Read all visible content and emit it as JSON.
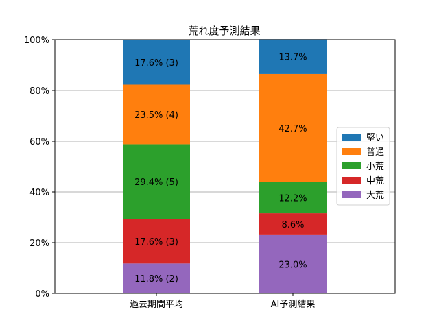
{
  "chart_data": {
    "type": "bar",
    "stacked": true,
    "title": "荒れ度予測結果",
    "xlabel": "",
    "ylabel": "",
    "categories": [
      "過去期間平均",
      "AI予測結果"
    ],
    "ylim": [
      0,
      100
    ],
    "yticks": [
      0,
      20,
      40,
      60,
      80,
      100
    ],
    "ytick_labels": [
      "0%",
      "20%",
      "40%",
      "60%",
      "80%",
      "100%"
    ],
    "grid": "horizontal",
    "legend_position": "right",
    "series": [
      {
        "name": "大荒",
        "color": "#9467bd",
        "values": [
          11.8,
          23.0
        ],
        "labels": [
          "11.8% (2)",
          "23.0%"
        ]
      },
      {
        "name": "中荒",
        "color": "#d62728",
        "values": [
          17.6,
          8.6
        ],
        "labels": [
          "17.6% (3)",
          "8.6%"
        ]
      },
      {
        "name": "小荒",
        "color": "#2ca02c",
        "values": [
          29.4,
          12.2
        ],
        "labels": [
          "29.4% (5)",
          "12.2%"
        ]
      },
      {
        "name": "普通",
        "color": "#ff7f0e",
        "values": [
          23.5,
          42.7
        ],
        "labels": [
          "23.5% (4)",
          "42.7%"
        ]
      },
      {
        "name": "堅い",
        "color": "#1f77b4",
        "values": [
          17.6,
          13.7
        ],
        "labels": [
          "17.6% (3)",
          "13.7%"
        ]
      }
    ],
    "legend_order": [
      "堅い",
      "普通",
      "小荒",
      "中荒",
      "大荒"
    ]
  }
}
